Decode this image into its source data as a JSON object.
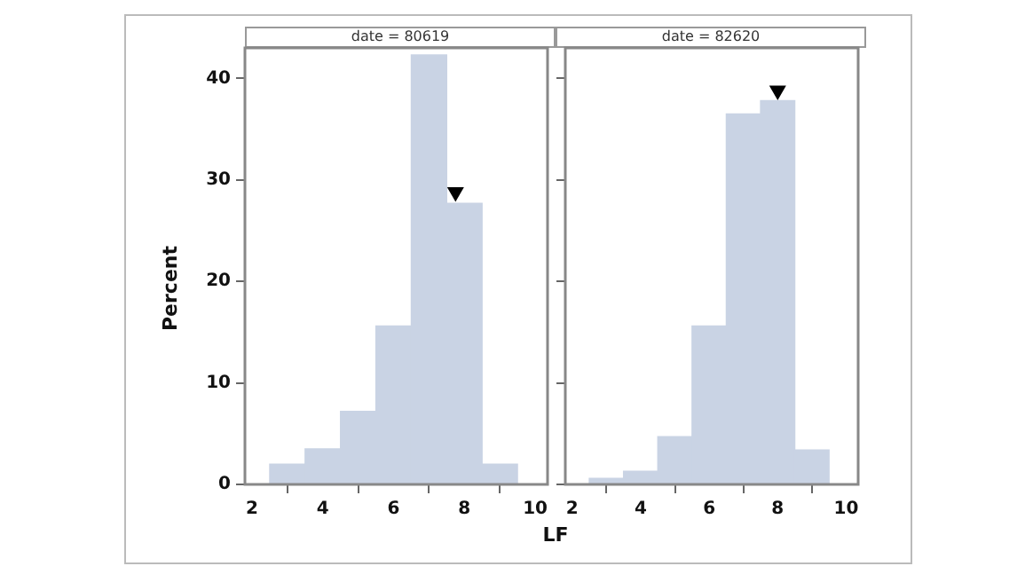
{
  "chart_data": [
    {
      "type": "histogram",
      "title": "date = 80619",
      "xlabel": "LF",
      "ylabel": "Percent",
      "xlim": [
        1.8,
        10.35
      ],
      "xticks": [
        2,
        4,
        6,
        8,
        10
      ],
      "ylim": [
        0,
        43
      ],
      "yticks": [
        0,
        10,
        20,
        30,
        40
      ],
      "series": [
        {
          "color": "#c9d3e4",
          "bins": [
            2.5,
            3.5,
            4.5,
            5.5,
            6.5,
            7.5,
            8.5,
            9.5
          ],
          "values": [
            2,
            3.5,
            7.2,
            15.6,
            42.3,
            27.7,
            2
          ]
        },
        {
          "type": "scatter",
          "marker": "triangle",
          "color": "#000000",
          "x": [
            7.75
          ],
          "values": [
            28.8
          ]
        }
      ]
    },
    {
      "type": "histogram",
      "title": "date = 82620",
      "tick_labels": "x",
      "xlim": [
        1.8,
        10.35
      ],
      "xticks": [
        2,
        4,
        6,
        8,
        10
      ],
      "ylim": [
        0,
        43
      ],
      "yticks": [
        0,
        10,
        20,
        30,
        40
      ],
      "series": [
        {
          "color": "#c9d3e4",
          "bins": [
            2.5,
            3.5,
            4.5,
            5.5,
            6.5,
            7.5,
            8.5,
            9.5
          ],
          "values": [
            0.6,
            1.3,
            4.7,
            15.6,
            36.5,
            37.8,
            3.4
          ]
        },
        {
          "type": "scatter",
          "marker": "triangle",
          "color": "#000000",
          "x": [
            8.0
          ],
          "values": [
            38.8
          ]
        }
      ]
    }
  ]
}
